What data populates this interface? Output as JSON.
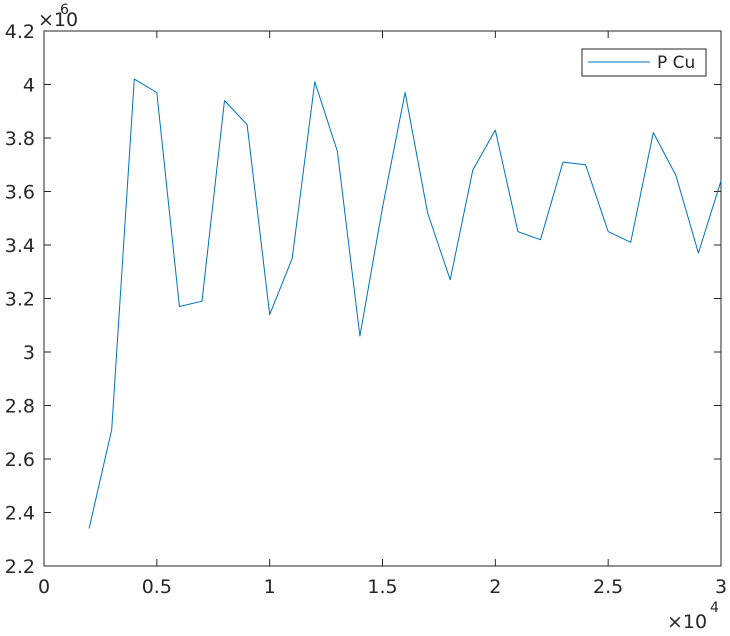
{
  "chart_data": {
    "type": "line",
    "x_multiplier_label": {
      "base": "×10",
      "exponent": "4"
    },
    "y_multiplier_label": {
      "base": "×10",
      "exponent": "6"
    },
    "xlim": [
      0,
      30000
    ],
    "ylim": [
      2200000,
      4200000
    ],
    "x_ticks": [
      0,
      5000,
      10000,
      15000,
      20000,
      25000,
      30000
    ],
    "x_tick_labels": [
      "0",
      "0.5",
      "1",
      "1.5",
      "2",
      "2.5",
      "3"
    ],
    "y_ticks": [
      2200000,
      2400000,
      2600000,
      2800000,
      3000000,
      3200000,
      3400000,
      3600000,
      3800000,
      4000000,
      4200000
    ],
    "y_tick_labels": [
      "2.2",
      "2.4",
      "2.6",
      "2.8",
      "3",
      "3.2",
      "3.4",
      "3.6",
      "3.8",
      "4",
      "4.2"
    ],
    "grid": false,
    "legend_position": "top-right",
    "series": [
      {
        "name": "P Cu",
        "color": "#0072BD",
        "x": [
          2000,
          3000,
          4000,
          5000,
          6000,
          7000,
          8000,
          9000,
          10000,
          11000,
          12000,
          13000,
          14000,
          15000,
          16000,
          17000,
          18000,
          19000,
          20000,
          21000,
          22000,
          23000,
          24000,
          25000,
          26000,
          27000,
          28000,
          29000,
          30000
        ],
        "y": [
          2340000,
          2710000,
          4020000,
          3970000,
          3170000,
          3190000,
          3940000,
          3850000,
          3140000,
          3350000,
          4010000,
          3750000,
          3060000,
          3540000,
          3970000,
          3520000,
          3270000,
          3680000,
          3830000,
          3450000,
          3420000,
          3710000,
          3700000,
          3450000,
          3410000,
          3820000,
          3660000,
          3370000,
          3640000
        ]
      }
    ]
  }
}
